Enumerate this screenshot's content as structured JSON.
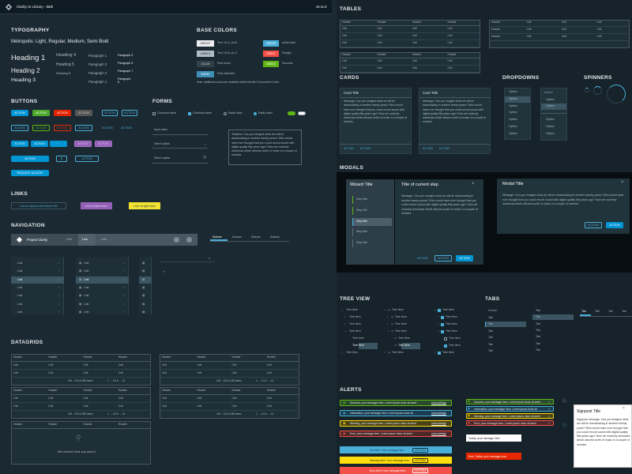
{
  "app": {
    "title": "Clarity UI Library - dark",
    "version": "v0.11.6"
  },
  "sections": {
    "typography": "TYPOGRAPHY",
    "base_colors": "BASE COLORS",
    "buttons": "BUTTONS",
    "forms": "FORMS",
    "links": "LINKS",
    "navigation": "NAVIGATION",
    "datagrids": "DATAGRIDS",
    "tables": "TABLES",
    "cards": "CARDS",
    "dropdowns": "DROPDOWNS",
    "spinners": "SPINNERS",
    "modals": "MODALS",
    "tree_view": "TREE VIEW",
    "tabs": "TABS",
    "alerts": "ALERTS"
  },
  "typography": {
    "font_desc": "Metropolis: Light, Regular, Medium, Semi Bold",
    "h1": "Heading 1",
    "h2": "Heading 2",
    "h3": "Heading 3",
    "h4": "Heading 4",
    "h5": "Heading 5",
    "h6": "Heading 6",
    "p1": "Paragraph 1",
    "p2": "Paragraph 2",
    "p3": "Paragraph 3",
    "p4": "Paragraph 4",
    "p5": "Paragraph 5",
    "p6": "Paragraph 6",
    "p7": "Paragraph 7",
    "p8": "Paragraph 8"
  },
  "colors": {
    "swatches": [
      {
        "hex": "EBECEF",
        "label": "Text: h1-3, p4-8",
        "bg": "#ebecef",
        "fg": "#333"
      },
      {
        "hex": "ADBBC4",
        "label": "Text: h4-6, p1-3",
        "bg": "#adbbc4",
        "fg": "#333"
      },
      {
        "hex": "324148",
        "label": "Row hover",
        "bg": "#324148",
        "fg": "#ccc"
      },
      {
        "hex": "3E8FB7",
        "label": "Row selection",
        "bg": "#3e8fb7",
        "fg": "#fff"
      }
    ],
    "accents": [
      {
        "hex": "49AFD9",
        "label": "action blue",
        "bg": "#49afd9"
      },
      {
        "hex": "F54F47",
        "label": "Danger",
        "bg": "#f54f47"
      },
      {
        "hex": "60B515",
        "label": "Success",
        "bg": "#60b515"
      }
    ],
    "note": "Note: additional colors are available within this file's Document Colors"
  },
  "buttons": {
    "action": "ACTION",
    "dots": "···",
    "request": "REQUEST ACCESS"
  },
  "forms": {
    "checkbox": "Checkbox label",
    "checkbox2": "Checkbox label",
    "radio": "Radio label",
    "radio2": "Radio label",
    "input": "Input value",
    "select1": "Select option",
    "select2": "Select option",
    "textarea": "Textarea: Can you imagine what we will be downloading in another twenty years? Who would have ever thought that you could record sound with digital quality fifty years ago? Now we routinely download whole albums worth of music in a couple of minutes."
  },
  "links": {
    "default": "Link on default dark theme 90s",
    "dark": "Link on dark hues",
    "light": "Link on light hues"
  },
  "nav": {
    "brand": "Project Clarity",
    "link1": "Link",
    "link2": "Link",
    "link3": "Link",
    "subnav": [
      "Subnav",
      "Subnav",
      "Subnav",
      "Subnav"
    ],
    "side": "Link"
  },
  "datagrid": {
    "header": "Header",
    "cell": "Cell",
    "footer": "100 - 120 of 280 items",
    "pages": "1 … 4 5 6 … 14",
    "empty": "We couldn't find any users!"
  },
  "tables": {
    "header": "Header",
    "cell": "Cell"
  },
  "cards": {
    "title": "Card Title",
    "body": "Message: Can you imagine what we will be downloading in another twenty years? Who would have ever thought that you could record sound with digital quality fifty years ago? Now we routinely download whole albums worth of music in a couple of minutes.",
    "action": "ACTION"
  },
  "dropdowns": {
    "option": "Option",
    "header": "Header"
  },
  "modals": {
    "wizard_title": "Wizard Title",
    "step_title": "Title of current step",
    "step": "Step title",
    "body": "Message: Can you imagine what we will be downloading in another twenty years? Who would have ever thought that you could record sound with digital quality fifty years ago? Now we routinely download whole albums worth of music in a couple of minutes.",
    "modal_title": "Modal Title",
    "action": "ACTION"
  },
  "tree": {
    "item": "Tree item"
  },
  "tabs": {
    "tab": "Tab"
  },
  "alerts": {
    "success": "Success, your message here. Lorem ipsum dolor sit amet",
    "info": "Information, your message here. Lorem ipsum dolor sit",
    "warning": "Warning, your message here. Lorem ipsum dolor sit amet",
    "error": "Error, your message here. Lorem ipsum dolor sit amet",
    "ack": "Acknowledge",
    "tooltip": "Tooltip: your message here.",
    "error_tooltip": "Error Tooltip: your message here.",
    "info_app": "Info Alert. Your message here.",
    "warn_app": "Warning Alert. Your message here.",
    "err_app": "Error Alert. Your message here.",
    "signpost_title": "Signpost Title",
    "signpost_body": "Signpost message: Can you imagine what we will be downloading in another twenty years? Who would have ever thought that you could record sound with digital quality fifty years ago? Now we routinely download whole albums worth of music in a couple of minutes."
  }
}
